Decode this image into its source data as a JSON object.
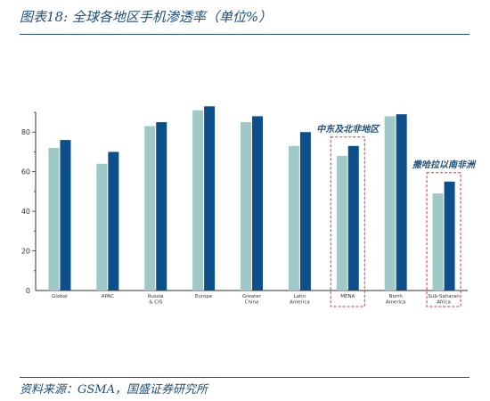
{
  "figure_title": "图表18:  全球各地区手机渗透率（单位%）",
  "source": "资料来源：GSMA，国盛证券研究所",
  "colors": {
    "series1": "#9ec9c7",
    "series2": "#0d4f8b",
    "highlight_box": "#d9342b",
    "axis": "#333333",
    "text_accent": "#1f4e79"
  },
  "chart_data": {
    "type": "bar",
    "categories": [
      [
        "Global"
      ],
      [
        "APAC"
      ],
      [
        "Russia",
        "& CIS"
      ],
      [
        "Europe"
      ],
      [
        "Greater",
        "China"
      ],
      [
        "Latin",
        "America"
      ],
      [
        "MENA"
      ],
      [
        "North",
        "America"
      ],
      [
        "Sub-Saharan",
        "Africa"
      ]
    ],
    "series": [
      {
        "values": [
          72,
          64,
          83,
          91,
          85,
          73,
          68,
          88,
          49
        ]
      },
      {
        "values": [
          76,
          70,
          85,
          93,
          88,
          80,
          73,
          89,
          55
        ]
      }
    ],
    "ylim": [
      0,
      90
    ],
    "yticks": [
      0,
      20,
      40,
      60,
      80
    ],
    "highlight": [
      6,
      8
    ],
    "annotations": [
      {
        "category": 6,
        "text": "中东及北非地区"
      },
      {
        "category": 8,
        "text": "撒哈拉以南非洲"
      }
    ]
  }
}
